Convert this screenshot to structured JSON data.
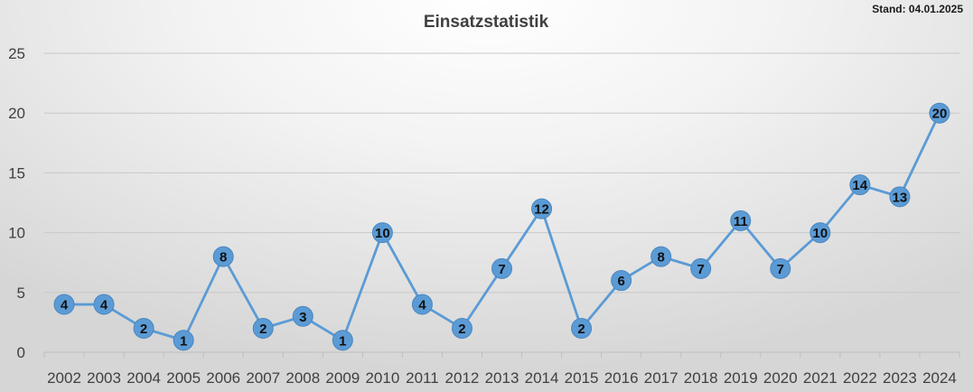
{
  "stand": "Stand: 04.01.2025",
  "chart_data": {
    "type": "line",
    "title": "Einsatzstatistik",
    "xlabel": "",
    "ylabel": "",
    "categories": [
      "2002",
      "2003",
      "2004",
      "2005",
      "2006",
      "2007",
      "2008",
      "2009",
      "2010",
      "2011",
      "2012",
      "2013",
      "2014",
      "2015",
      "2016",
      "2017",
      "2018",
      "2019",
      "2020",
      "2021",
      "2022",
      "2023",
      "2024"
    ],
    "series": [
      {
        "values": [
          4,
          4,
          2,
          1,
          8,
          2,
          3,
          1,
          10,
          4,
          2,
          7,
          12,
          2,
          6,
          8,
          7,
          11,
          7,
          10,
          14,
          13,
          20
        ]
      }
    ],
    "ylim": [
      0,
      25
    ],
    "yticks": [
      0,
      5,
      10,
      15,
      20,
      25
    ],
    "grid": true,
    "legend": "none",
    "data_labels": true,
    "colors": {
      "line": "#5b9bd5",
      "marker": "#5b9bd5",
      "grid": "#c8c8c8",
      "text": "#404040"
    }
  }
}
